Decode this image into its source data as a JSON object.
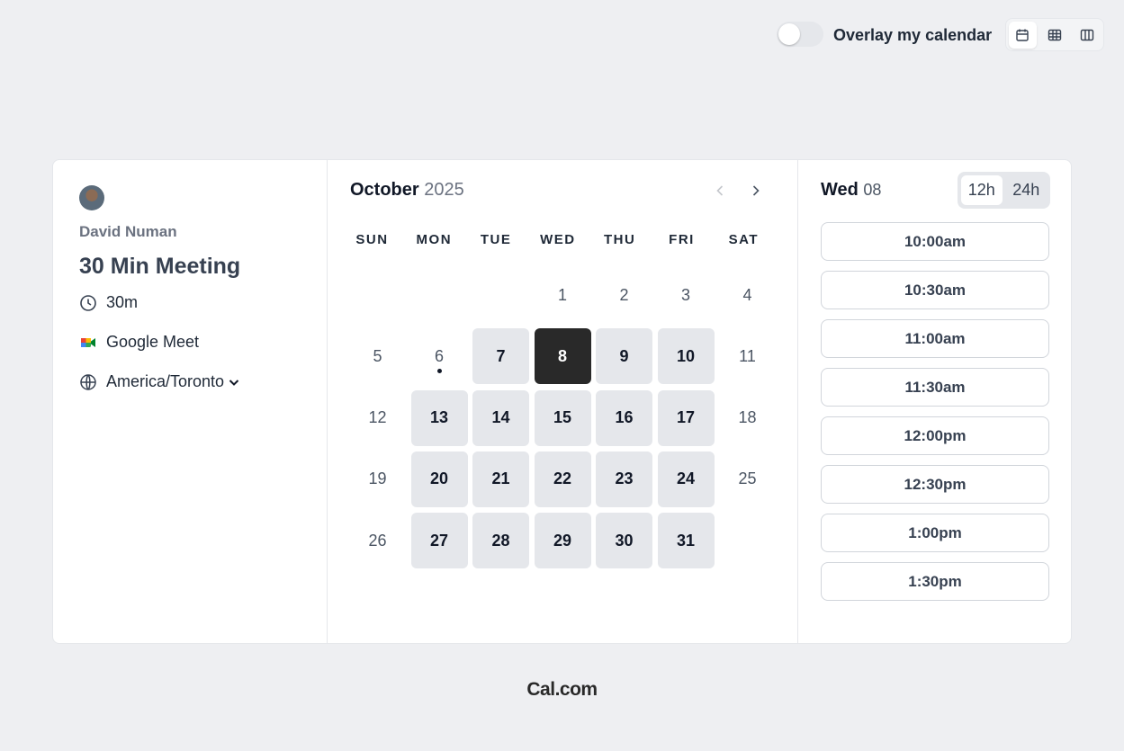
{
  "toolbar": {
    "overlay_label": "Overlay my calendar"
  },
  "profile": {
    "name": "David Numan",
    "event_title": "30 Min Meeting",
    "duration": "30m",
    "location": "Google Meet",
    "timezone": "America/Toronto"
  },
  "calendar": {
    "month": "October",
    "year": "2025",
    "weekdays": [
      "SUN",
      "MON",
      "TUE",
      "WED",
      "THU",
      "FRI",
      "SAT"
    ],
    "days": [
      null,
      null,
      null,
      {
        "day": 1,
        "state": "unavailable"
      },
      {
        "day": 2,
        "state": "unavailable"
      },
      {
        "day": 3,
        "state": "unavailable"
      },
      {
        "day": 4,
        "state": "unavailable"
      },
      {
        "day": 5,
        "state": "unavailable"
      },
      {
        "day": 6,
        "state": "unavailable",
        "today": true
      },
      {
        "day": 7,
        "state": "available"
      },
      {
        "day": 8,
        "state": "selected"
      },
      {
        "day": 9,
        "state": "available"
      },
      {
        "day": 10,
        "state": "available"
      },
      {
        "day": 11,
        "state": "unavailable"
      },
      {
        "day": 12,
        "state": "unavailable"
      },
      {
        "day": 13,
        "state": "available"
      },
      {
        "day": 14,
        "state": "available"
      },
      {
        "day": 15,
        "state": "available"
      },
      {
        "day": 16,
        "state": "available"
      },
      {
        "day": 17,
        "state": "available"
      },
      {
        "day": 18,
        "state": "unavailable"
      },
      {
        "day": 19,
        "state": "unavailable"
      },
      {
        "day": 20,
        "state": "available"
      },
      {
        "day": 21,
        "state": "available"
      },
      {
        "day": 22,
        "state": "available"
      },
      {
        "day": 23,
        "state": "available"
      },
      {
        "day": 24,
        "state": "available"
      },
      {
        "day": 25,
        "state": "unavailable"
      },
      {
        "day": 26,
        "state": "unavailable"
      },
      {
        "day": 27,
        "state": "available"
      },
      {
        "day": 28,
        "state": "available"
      },
      {
        "day": 29,
        "state": "available"
      },
      {
        "day": 30,
        "state": "available"
      },
      {
        "day": 31,
        "state": "available"
      }
    ]
  },
  "slots_panel": {
    "weekday": "Wed",
    "day": "08",
    "formats": [
      "12h",
      "24h"
    ],
    "slots": [
      "10:00am",
      "10:30am",
      "11:00am",
      "11:30am",
      "12:00pm",
      "12:30pm",
      "1:00pm",
      "1:30pm"
    ]
  },
  "footer": {
    "brand": "Cal.com"
  }
}
